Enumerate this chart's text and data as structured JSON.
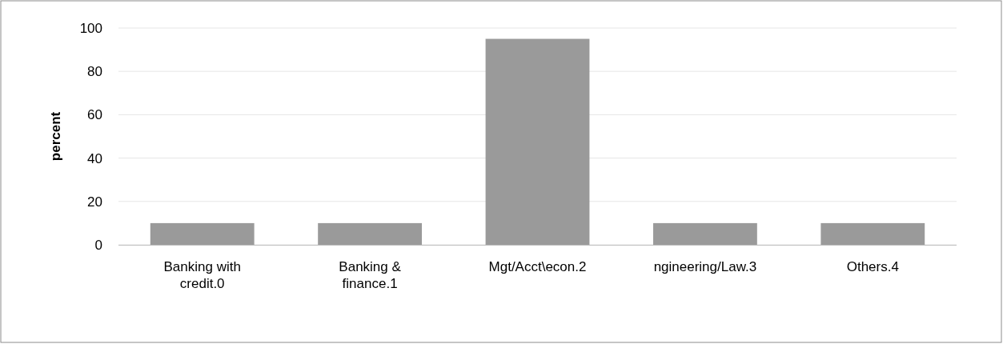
{
  "chart_data": {
    "type": "bar",
    "ylabel": "percent",
    "categories": [
      "Banking with credit.0",
      "Banking & finance.1",
      "Mgt/Acct\\econ.2",
      "ngineering/Law.3",
      "Others.4"
    ],
    "values": [
      10,
      10,
      95,
      10,
      10
    ],
    "color": "#9a9a9a",
    "ylim": [
      0,
      100
    ],
    "yticks": [
      0,
      20,
      40,
      60,
      80,
      100
    ],
    "grid": "y"
  }
}
